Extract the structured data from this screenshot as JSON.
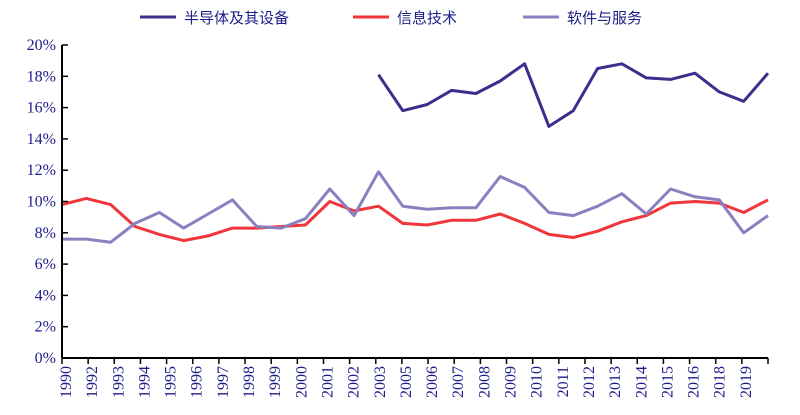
{
  "chart_data": {
    "type": "line",
    "title": "",
    "xlabel": "",
    "ylabel": "",
    "x": [
      1990,
      1991,
      1992,
      1993,
      1994,
      1995,
      1996,
      1997,
      1998,
      1999,
      2000,
      2001,
      2002,
      2003,
      2004,
      2005,
      2006,
      2007,
      2008,
      2009,
      2010,
      2011,
      2012,
      2013,
      2014,
      2015,
      2016,
      2017,
      2018,
      2019
    ],
    "x_tick_labels": [
      "1990",
      "1992",
      "1993",
      "1994",
      "1995",
      "1996",
      "1997",
      "1998",
      "1999",
      "2000",
      "2001",
      "2002",
      "2003",
      "2005",
      "2006",
      "2007",
      "2008",
      "2009",
      "2010",
      "2011",
      "2012",
      "2013",
      "2014",
      "2015",
      "2016",
      "2018",
      "2019"
    ],
    "y_tick_labels": [
      "0%",
      "2%",
      "4%",
      "6%",
      "8%",
      "10%",
      "12%",
      "14%",
      "16%",
      "18%",
      "20%"
    ],
    "ylim": [
      0,
      20
    ],
    "y_unit": "%",
    "grid": false,
    "legend_position": "top",
    "series": [
      {
        "name": "半导体及其设备",
        "color": "#3a2f8c",
        "values": [
          null,
          null,
          null,
          null,
          null,
          null,
          null,
          null,
          null,
          null,
          null,
          null,
          null,
          18.1,
          15.8,
          16.2,
          17.1,
          16.9,
          17.7,
          18.8,
          14.8,
          15.8,
          18.5,
          18.8,
          17.9,
          17.8,
          18.2,
          17.0,
          16.4,
          18.2
        ]
      },
      {
        "name": "信息技术",
        "color": "#f0363a",
        "values": [
          9.8,
          10.2,
          9.8,
          8.4,
          7.9,
          7.5,
          7.8,
          8.3,
          8.3,
          8.4,
          8.5,
          10.0,
          9.4,
          9.7,
          8.6,
          8.5,
          8.8,
          8.8,
          9.2,
          8.6,
          7.9,
          7.7,
          8.1,
          8.7,
          9.1,
          9.9,
          10.0,
          9.9,
          9.3,
          10.1
        ]
      },
      {
        "name": "软件与服务",
        "color": "#8a80c0",
        "values": [
          7.6,
          7.6,
          7.4,
          8.6,
          9.3,
          8.3,
          9.2,
          10.1,
          8.4,
          8.3,
          8.9,
          10.8,
          9.1,
          11.9,
          9.7,
          9.5,
          9.6,
          9.6,
          11.6,
          10.9,
          9.3,
          9.1,
          9.7,
          10.5,
          9.2,
          10.8,
          10.3,
          10.1,
          8.0,
          9.1
        ]
      }
    ]
  }
}
